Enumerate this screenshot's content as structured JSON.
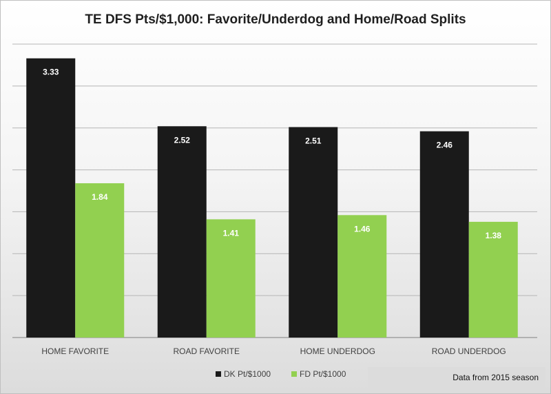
{
  "chart_data": {
    "type": "bar",
    "title": "TE DFS Pts/$1,000: Favorite/Underdog and Home/Road Splits",
    "categories": [
      "HOME FAVORITE",
      "ROAD FAVORITE",
      "HOME UNDERDOG",
      "ROAD UNDERDOG"
    ],
    "series": [
      {
        "name": "DK Pt/$1000",
        "values": [
          3.33,
          2.52,
          2.51,
          2.46
        ],
        "color": "#1a1a1a"
      },
      {
        "name": "FD Pt/$1000",
        "values": [
          1.84,
          1.41,
          1.46,
          1.38
        ],
        "color": "#92d050"
      }
    ],
    "ylim": [
      0,
      3.5
    ],
    "grid": true,
    "legend": "bottom-center",
    "annotation": "Data from 2015 season"
  }
}
